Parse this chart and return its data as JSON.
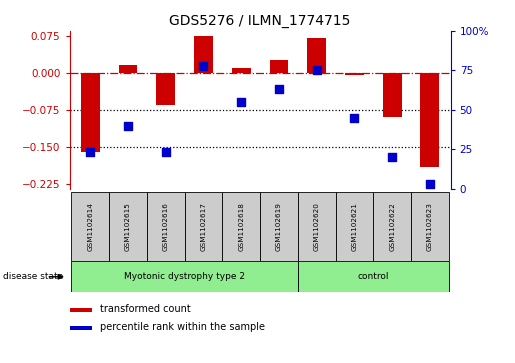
{
  "title": "GDS5276 / ILMN_1774715",
  "samples": [
    "GSM1102614",
    "GSM1102615",
    "GSM1102616",
    "GSM1102617",
    "GSM1102618",
    "GSM1102619",
    "GSM1102620",
    "GSM1102621",
    "GSM1102622",
    "GSM1102623"
  ],
  "red_values": [
    -0.16,
    0.015,
    -0.065,
    0.075,
    0.01,
    0.025,
    0.07,
    -0.005,
    -0.09,
    -0.19
  ],
  "blue_values": [
    23,
    40,
    23,
    78,
    55,
    63,
    75,
    45,
    20,
    3
  ],
  "groups": [
    {
      "label": "Myotonic dystrophy type 2",
      "start": 0,
      "end": 6,
      "color": "#90EE90"
    },
    {
      "label": "control",
      "start": 6,
      "end": 10,
      "color": "#90EE90"
    }
  ],
  "ylim_left": [
    -0.235,
    0.085
  ],
  "ylim_right": [
    0,
    100
  ],
  "yticks_left": [
    0.075,
    0,
    -0.075,
    -0.15,
    -0.225
  ],
  "yticks_right": [
    100,
    75,
    50,
    25,
    0
  ],
  "red_color": "#CC0000",
  "blue_color": "#0000CC",
  "bar_width": 0.5,
  "marker_size": 40,
  "cell_color": "#CCCCCC",
  "border_color": "#000000"
}
